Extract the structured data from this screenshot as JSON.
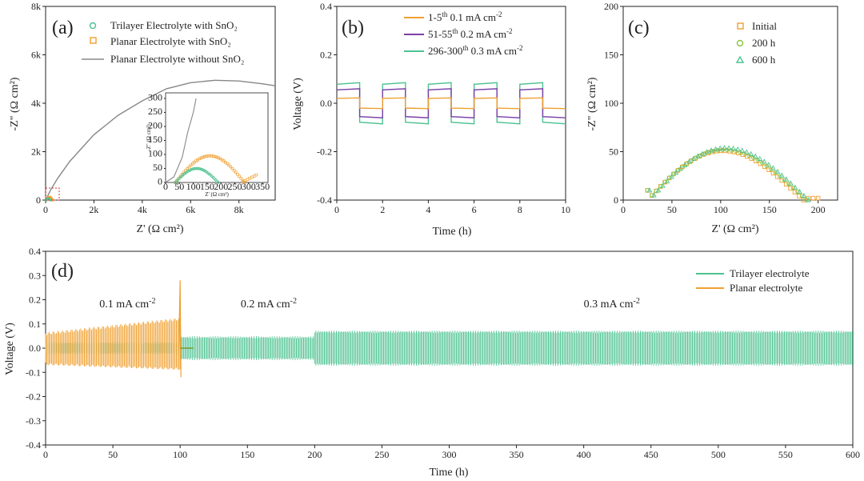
{
  "colors": {
    "orange": "#F0A030",
    "green": "#4CC290",
    "gray": "#888888",
    "purple": "#7B3FA8",
    "red_box": "#D23232"
  },
  "chart_data": [
    {
      "id": "a",
      "panel_label": "(a)",
      "type": "line",
      "xlabel": "Z' (Ω cm²)",
      "ylabel": "-Z\" (Ω cm²)",
      "xlim": [
        0,
        9500
      ],
      "ylim": [
        0,
        8000
      ],
      "x_ticks": [
        "0",
        "2k",
        "4k",
        "6k",
        "8k"
      ],
      "y_ticks": [
        "0",
        "2k",
        "4k",
        "6k",
        "8k"
      ],
      "series": [
        {
          "name": "Trilayer Electrolyte with SnO₂",
          "style": "circle",
          "color": "#4CC290"
        },
        {
          "name": "Planar Electrolyte with SnO₂",
          "style": "square",
          "color": "#F0A030"
        },
        {
          "name": "Planar Electrolyte without SnO₂",
          "style": "line",
          "color": "#888888",
          "x": [
            0,
            200,
            500,
            1000,
            2000,
            3000,
            4000,
            5000,
            6000,
            7000,
            8000,
            9000,
            9500
          ],
          "y": [
            0,
            400,
            900,
            1600,
            2700,
            3500,
            4100,
            4600,
            4850,
            4950,
            4920,
            4800,
            4720
          ]
        }
      ],
      "inset": {
        "xlabel": "Z' (Ω cm²)",
        "ylabel": "-Z\" (Ω cm²)",
        "xlim": [
          0,
          370
        ],
        "ylim": [
          0,
          320
        ],
        "x_ticks": [
          "0",
          "50",
          "100",
          "150",
          "200",
          "250",
          "300",
          "350"
        ],
        "y_ticks": [
          "0",
          "50",
          "100",
          "150",
          "200",
          "250",
          "300"
        ]
      }
    },
    {
      "id": "b",
      "panel_label": "(b)",
      "type": "line",
      "xlabel": "Time (h)",
      "ylabel": "Voltage (V)",
      "xlim": [
        0,
        10
      ],
      "ylim": [
        -0.4,
        0.4
      ],
      "x_ticks": [
        "0",
        "2",
        "4",
        "6",
        "8",
        "10"
      ],
      "y_ticks": [
        "-0.4",
        "-0.2",
        "0.0",
        "0.2",
        "0.4"
      ],
      "series": [
        {
          "name": "1-5th 0.1 mA cm-2",
          "legend_main": "1-5",
          "legend_sup": "th",
          "legend_rest": " 0.1 mA cm",
          "legend_unit_sup": "-2",
          "color": "#F0A030",
          "amplitude": 0.022
        },
        {
          "name": "51-55th 0.2 mA cm-2",
          "legend_main": "51-55",
          "legend_sup": "th",
          "legend_rest": " 0.2 mA cm",
          "legend_unit_sup": "-2",
          "color": "#7B3FA8",
          "amplitude": 0.06
        },
        {
          "name": "296-300th 0.3 mA cm-2",
          "legend_main": "296-300",
          "legend_sup": "th",
          "legend_rest": " 0.3 mA cm",
          "legend_unit_sup": "-2",
          "color": "#4CC290",
          "amplitude": 0.085
        }
      ]
    },
    {
      "id": "c",
      "panel_label": "(c)",
      "type": "scatter",
      "xlabel": "Z' (Ω cm²)",
      "ylabel": "-Z\" (Ω cm²)",
      "xlim": [
        0,
        220
      ],
      "ylim": [
        0,
        200
      ],
      "x_ticks": [
        "0",
        "50",
        "100",
        "150",
        "200"
      ],
      "y_ticks": [
        "0",
        "50",
        "100",
        "150",
        "200"
      ],
      "series": [
        {
          "name": "Initial",
          "marker": "square",
          "color": "#F0A030",
          "x0": 25,
          "x1": 185,
          "peak": 55,
          "tail_to": 200
        },
        {
          "name": "200 h",
          "marker": "circle",
          "color": "#8CC63F",
          "x0": 25,
          "x1": 188,
          "peak": 56,
          "tail_to": 0
        },
        {
          "name": "600 h",
          "marker": "triangle",
          "color": "#4CC290",
          "x0": 27,
          "x1": 190,
          "peak": 58,
          "tail_to": 0
        }
      ]
    },
    {
      "id": "d",
      "panel_label": "(d)",
      "type": "line",
      "xlabel": "Time (h)",
      "ylabel": "Voltage (V)",
      "xlim": [
        0,
        600
      ],
      "ylim": [
        -0.4,
        0.4
      ],
      "x_ticks": [
        "0",
        "50",
        "100",
        "150",
        "200",
        "250",
        "300",
        "350",
        "400",
        "450",
        "500",
        "550",
        "600"
      ],
      "y_ticks": [
        "-0.4",
        "-0.3",
        "-0.2",
        "-0.1",
        "0.0",
        "0.1",
        "0.2",
        "0.3",
        "0.4"
      ],
      "annotations": [
        {
          "text": "0.1 mA cm",
          "sup": "-2",
          "x": 40
        },
        {
          "text": "0.2 mA cm",
          "sup": "-2",
          "x": 145
        },
        {
          "text": "0.3 mA cm",
          "sup": "-2",
          "x": 400
        }
      ],
      "series": [
        {
          "name": "Trilayer electrolyte",
          "color": "#4CC290",
          "segments": [
            {
              "from": 0,
              "to": 100,
              "amp": 0.022
            },
            {
              "from": 100,
              "to": 200,
              "amp": 0.045
            },
            {
              "from": 200,
              "to": 600,
              "amp": 0.068
            }
          ]
        },
        {
          "name": "Planar electrolyte",
          "color": "#F0A030",
          "segments": [
            {
              "from": 0,
              "to": 100,
              "amp_start": 0.06,
              "amp_end": 0.12
            }
          ],
          "spike": {
            "x": 100,
            "y": 0.28
          }
        }
      ]
    }
  ]
}
